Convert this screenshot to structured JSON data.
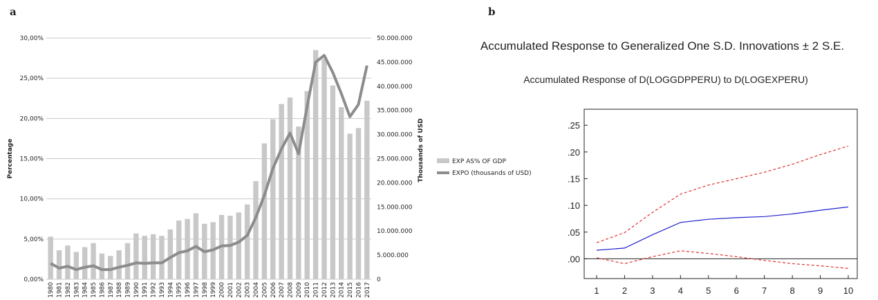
{
  "panels": {
    "a": "a",
    "b": "b"
  },
  "chart_data": [
    {
      "type": "bar",
      "categories": [
        "1980",
        "1981",
        "1982",
        "1983",
        "1984",
        "1985",
        "1986",
        "1987",
        "1988",
        "1989",
        "1990",
        "1991",
        "1992",
        "1993",
        "1994",
        "1995",
        "1996",
        "1997",
        "1998",
        "1999",
        "2000",
        "2001",
        "2002",
        "2003",
        "2004",
        "2005",
        "2006",
        "2007",
        "2008",
        "2009",
        "2010",
        "2011",
        "2012",
        "2013",
        "2014",
        "2015",
        "2016",
        "2017"
      ],
      "ylabel": "Percentage",
      "y2label": "Thousands of USD",
      "ylim": [
        0,
        30
      ],
      "y2lim": [
        0,
        50000000
      ],
      "yticks": [
        "0,00%",
        "5,00%",
        "10,00%",
        "15,00%",
        "20,00%",
        "25,00%",
        "30,00%"
      ],
      "y2ticks": [
        "0",
        "5.000.000",
        "10.000.000",
        "15.000.000",
        "20.000.000",
        "25.000.000",
        "30.000.000",
        "35.000.000",
        "40.000.000",
        "45.000.000",
        "50.000.000"
      ],
      "grid": true,
      "legend_position": "right",
      "bar_color": "#c8c8c8",
      "line_color": "#8c8c8c",
      "series": [
        {
          "name": "EXP AS% OF GDP",
          "type": "bar",
          "axis": "left",
          "values": [
            5.3,
            3.6,
            4.2,
            3.4,
            4.0,
            4.5,
            3.2,
            2.9,
            3.6,
            4.5,
            5.7,
            5.4,
            5.6,
            5.4,
            6.2,
            7.3,
            7.5,
            8.2,
            6.9,
            7.1,
            8.0,
            7.9,
            8.3,
            9.3,
            12.2,
            16.9,
            19.9,
            21.8,
            22.6,
            19.0,
            23.4,
            28.5,
            27.4,
            24.1,
            21.4,
            18.1,
            18.8,
            22.2
          ]
        },
        {
          "name": "EXPO (thousands of USD)",
          "type": "line",
          "axis": "right",
          "values": [
            3300000,
            2300000,
            2700000,
            2000000,
            2500000,
            2800000,
            2000000,
            2000000,
            2500000,
            2900000,
            3400000,
            3300000,
            3400000,
            3400000,
            4500000,
            5500000,
            5900000,
            6800000,
            5700000,
            6100000,
            6900000,
            7000000,
            7700000,
            9100000,
            12800000,
            17400000,
            23000000,
            27000000,
            30300000,
            26000000,
            35800000,
            45000000,
            46400000,
            42900000,
            38500000,
            33700000,
            36200000,
            44300000
          ]
        }
      ]
    },
    {
      "type": "line",
      "title": "Accumulated Response to Generalized One S.D. Innovations ± 2 S.E.",
      "subtitle": "Accumulated Response of D(LOGGDPPERU) to D(LOGEXPERU)",
      "x": [
        1,
        2,
        3,
        4,
        5,
        6,
        7,
        8,
        9,
        10
      ],
      "xticks": [
        "1",
        "2",
        "3",
        "4",
        "5",
        "6",
        "7",
        "8",
        "9",
        "10"
      ],
      "ylim": [
        -0.037,
        0.28
      ],
      "yticks": [
        {
          "label": ".25",
          "value": 0.25
        },
        {
          "label": ".20",
          "value": 0.2
        },
        {
          "label": ".15",
          "value": 0.15
        },
        {
          "label": ".10",
          "value": 0.1
        },
        {
          "label": ".05",
          "value": 0.05
        },
        {
          "label": ".00",
          "value": 0.0
        }
      ],
      "series": [
        {
          "role": "response",
          "color": "#1f1fd0",
          "style": "solid",
          "values": [
            0.016,
            0.02,
            0.045,
            0.068,
            0.074,
            0.077,
            0.079,
            0.084,
            0.091,
            0.097
          ]
        },
        {
          "role": "upper-band",
          "color": "#e03030",
          "style": "dashed",
          "values": [
            0.03,
            0.049,
            0.087,
            0.121,
            0.138,
            0.15,
            0.162,
            0.177,
            0.195,
            0.211
          ]
        },
        {
          "role": "lower-band",
          "color": "#e03030",
          "style": "dashed",
          "values": [
            0.002,
            -0.009,
            0.004,
            0.015,
            0.01,
            0.004,
            -0.003,
            -0.009,
            -0.013,
            -0.018
          ]
        }
      ]
    }
  ]
}
